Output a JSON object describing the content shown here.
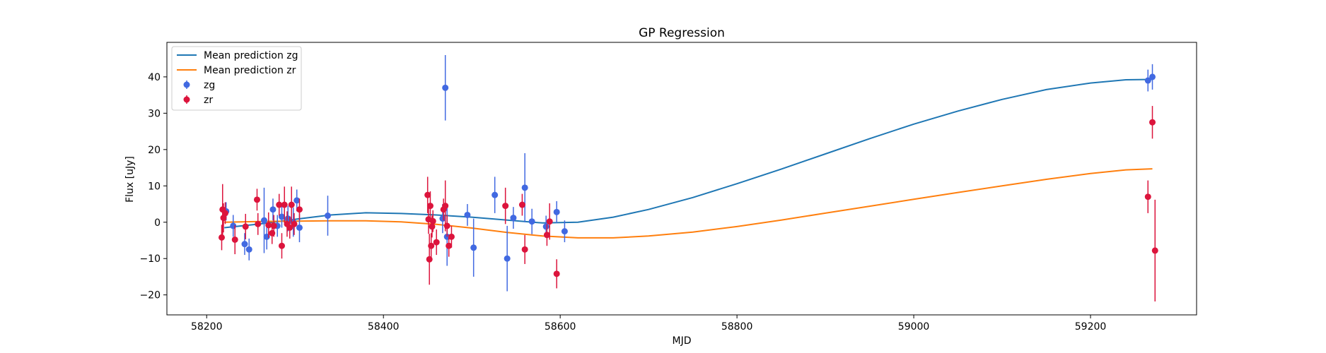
{
  "chart_data": {
    "type": "scatter",
    "title": "GP Regression",
    "xlabel": "MJD",
    "ylabel": "Flux [uJy]",
    "xlim": [
      58155,
      59320
    ],
    "ylim": [
      -25.5,
      49.5
    ],
    "xticks": [
      58200,
      58400,
      58600,
      58800,
      59000,
      59200
    ],
    "yticks": [
      -20,
      -10,
      0,
      10,
      20,
      30,
      40
    ],
    "grid": false,
    "legend_position": "upper left",
    "lines": [
      {
        "name": "Mean prediction zg",
        "color": "#1f77b4",
        "x": [
          58220,
          58260,
          58300,
          58340,
          58380,
          58420,
          58460,
          58500,
          58540,
          58580,
          58620,
          58660,
          58700,
          58750,
          58800,
          58850,
          58900,
          58950,
          59000,
          59050,
          59100,
          59150,
          59200,
          59240,
          59270
        ],
        "y": [
          -1.5,
          -0.5,
          0.8,
          2.0,
          2.6,
          2.4,
          2.0,
          1.4,
          0.6,
          -0.2,
          0.0,
          1.4,
          3.5,
          6.8,
          10.6,
          14.6,
          18.8,
          23.0,
          27.0,
          30.6,
          33.8,
          36.5,
          38.3,
          39.2,
          39.3
        ]
      },
      {
        "name": "Mean prediction zr",
        "color": "#ff7f0e",
        "x": [
          58220,
          58260,
          58300,
          58340,
          58380,
          58420,
          58460,
          58500,
          58540,
          58580,
          58620,
          58660,
          58700,
          58750,
          58800,
          58850,
          58900,
          58950,
          59000,
          59050,
          59100,
          59150,
          59200,
          59240,
          59270
        ],
        "y": [
          0.0,
          0.2,
          0.3,
          0.4,
          0.4,
          0.1,
          -0.6,
          -1.6,
          -2.8,
          -3.8,
          -4.3,
          -4.3,
          -3.8,
          -2.7,
          -1.2,
          0.6,
          2.5,
          4.4,
          6.3,
          8.2,
          10.0,
          11.8,
          13.4,
          14.4,
          14.7
        ]
      }
    ],
    "series": [
      {
        "name": "zg",
        "color": "#4169e1",
        "points": [
          {
            "x": 58222,
            "y": 3.0,
            "err": 2.5
          },
          {
            "x": 58230,
            "y": -1.0,
            "err": 3.0
          },
          {
            "x": 58243,
            "y": -6.0,
            "err": 3.0
          },
          {
            "x": 58248,
            "y": -7.5,
            "err": 3.0
          },
          {
            "x": 58265,
            "y": 0.5,
            "err": 9.0
          },
          {
            "x": 58268,
            "y": -4.0,
            "err": 3.5
          },
          {
            "x": 58275,
            "y": 3.5,
            "err": 3.0
          },
          {
            "x": 58280,
            "y": -1.0,
            "err": 3.0
          },
          {
            "x": 58285,
            "y": 1.5,
            "err": 3.0
          },
          {
            "x": 58292,
            "y": 1.0,
            "err": 3.5
          },
          {
            "x": 58298,
            "y": 0.0,
            "err": 4.0
          },
          {
            "x": 58302,
            "y": 6.0,
            "err": 3.0
          },
          {
            "x": 58305,
            "y": -1.5,
            "err": 4.0
          },
          {
            "x": 58337,
            "y": 1.8,
            "err": 5.5
          },
          {
            "x": 58467,
            "y": 1.0,
            "err": 4.0
          },
          {
            "x": 58470,
            "y": 37.0,
            "err": 9.0
          },
          {
            "x": 58472,
            "y": -4.0,
            "err": 8.0
          },
          {
            "x": 58495,
            "y": 2.0,
            "err": 3.0
          },
          {
            "x": 58502,
            "y": -7.0,
            "err": 8.0
          },
          {
            "x": 58526,
            "y": 7.5,
            "err": 5.0
          },
          {
            "x": 58540,
            "y": -10.0,
            "err": 9.0
          },
          {
            "x": 58547,
            "y": 1.2,
            "err": 3.0
          },
          {
            "x": 58560,
            "y": 9.5,
            "err": 9.5
          },
          {
            "x": 58568,
            "y": 0.2,
            "err": 3.5
          },
          {
            "x": 58584,
            "y": -1.2,
            "err": 3.0
          },
          {
            "x": 58596,
            "y": 2.8,
            "err": 3.0
          },
          {
            "x": 58605,
            "y": -2.5,
            "err": 3.0
          },
          {
            "x": 59265,
            "y": 39.0,
            "err": 3.0
          },
          {
            "x": 59270,
            "y": 40.0,
            "err": 3.5
          }
        ]
      },
      {
        "name": "zr",
        "color": "#dc143c",
        "points": [
          {
            "x": 58217,
            "y": -4.2,
            "err": 3.5
          },
          {
            "x": 58218,
            "y": 3.5,
            "err": 7.0
          },
          {
            "x": 58219,
            "y": 1.2,
            "err": 4.0
          },
          {
            "x": 58221,
            "y": 2.5,
            "err": 3.0
          },
          {
            "x": 58232,
            "y": -4.8,
            "err": 4.0
          },
          {
            "x": 58244,
            "y": -1.2,
            "err": 3.5
          },
          {
            "x": 58257,
            "y": 6.2,
            "err": 3.0
          },
          {
            "x": 58258,
            "y": -0.5,
            "err": 3.0
          },
          {
            "x": 58270,
            "y": -0.8,
            "err": 3.5
          },
          {
            "x": 58274,
            "y": -3.0,
            "err": 3.0
          },
          {
            "x": 58276,
            "y": -1.0,
            "err": 3.0
          },
          {
            "x": 58282,
            "y": 4.8,
            "err": 3.0
          },
          {
            "x": 58285,
            "y": -6.5,
            "err": 3.5
          },
          {
            "x": 58288,
            "y": 4.8,
            "err": 5.0
          },
          {
            "x": 58291,
            "y": -0.5,
            "err": 3.5
          },
          {
            "x": 58294,
            "y": -1.5,
            "err": 3.0
          },
          {
            "x": 58296,
            "y": 4.8,
            "err": 5.0
          },
          {
            "x": 58299,
            "y": -0.5,
            "err": 3.0
          },
          {
            "x": 58305,
            "y": 3.5,
            "err": 3.0
          },
          {
            "x": 58450,
            "y": 7.5,
            "err": 5.0
          },
          {
            "x": 58451,
            "y": 0.8,
            "err": 4.0
          },
          {
            "x": 58452,
            "y": -10.2,
            "err": 7.0
          },
          {
            "x": 58453,
            "y": 4.5,
            "err": 4.0
          },
          {
            "x": 58454,
            "y": -6.5,
            "err": 3.5
          },
          {
            "x": 58455,
            "y": -1.2,
            "err": 3.0
          },
          {
            "x": 58456,
            "y": 0.3,
            "err": 3.0
          },
          {
            "x": 58460,
            "y": -5.5,
            "err": 3.5
          },
          {
            "x": 58468,
            "y": 3.5,
            "err": 3.0
          },
          {
            "x": 58470,
            "y": 4.5,
            "err": 7.0
          },
          {
            "x": 58472,
            "y": -1.0,
            "err": 3.0
          },
          {
            "x": 58474,
            "y": -6.5,
            "err": 3.0
          },
          {
            "x": 58477,
            "y": -4.0,
            "err": 3.0
          },
          {
            "x": 58538,
            "y": 4.5,
            "err": 5.0
          },
          {
            "x": 58557,
            "y": 4.8,
            "err": 3.0
          },
          {
            "x": 58560,
            "y": -7.5,
            "err": 4.0
          },
          {
            "x": 58585,
            "y": -3.5,
            "err": 3.0
          },
          {
            "x": 58588,
            "y": 0.2,
            "err": 5.0
          },
          {
            "x": 58596,
            "y": -14.2,
            "err": 4.0
          },
          {
            "x": 59265,
            "y": 7.0,
            "err": 4.5
          },
          {
            "x": 59270,
            "y": 27.5,
            "err": 4.5
          },
          {
            "x": 59273,
            "y": -7.8,
            "err": 14.0
          }
        ]
      }
    ]
  }
}
